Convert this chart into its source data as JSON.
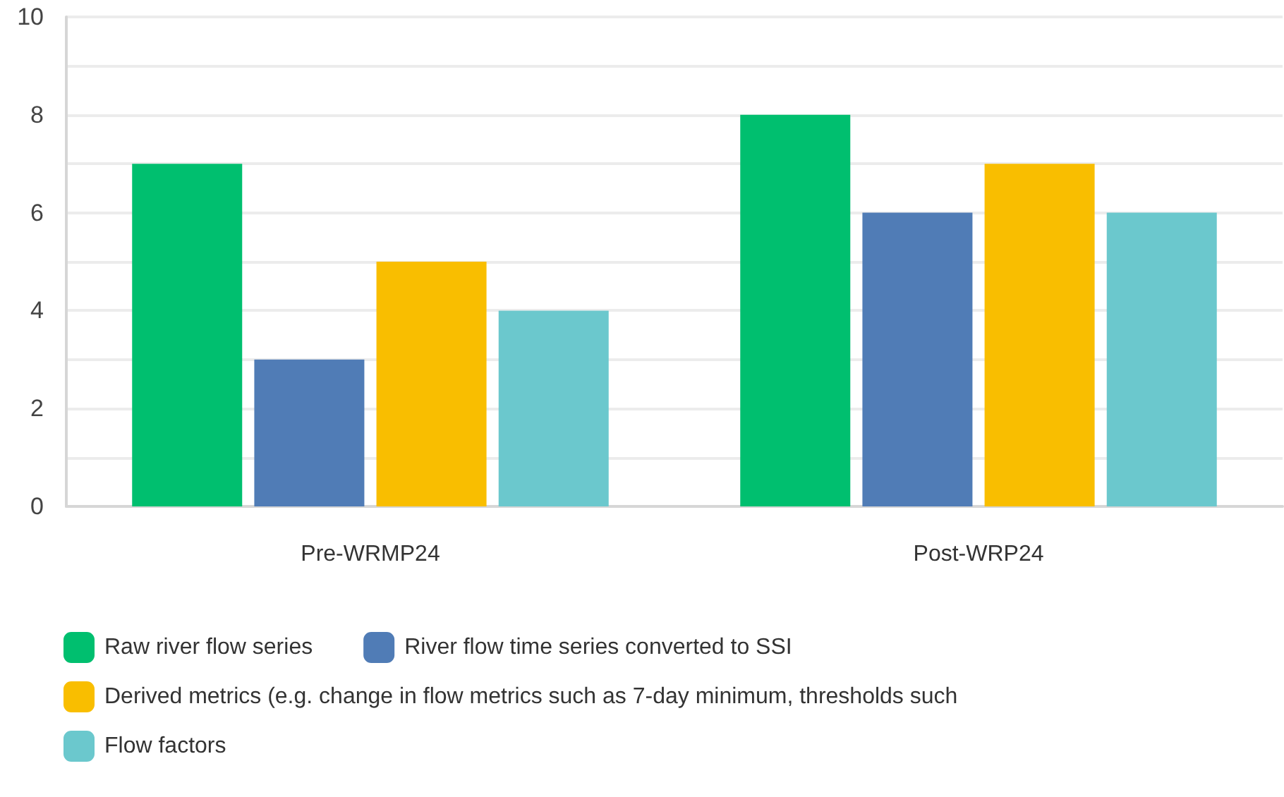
{
  "chart_data": {
    "type": "bar",
    "categories": [
      "Pre-WRMP24",
      "Post-WRP24"
    ],
    "series": [
      {
        "name": "Raw river flow series",
        "color": "#00bf6f",
        "values": [
          7,
          8
        ]
      },
      {
        "name": "River flow time series converted to SSI",
        "color": "#507cb6",
        "values": [
          3,
          6
        ]
      },
      {
        "name": "Derived metrics (e.g. change in flow metrics such as 7-day minimum, thresholds such",
        "color": "#f9be00",
        "values": [
          5,
          7
        ]
      },
      {
        "name": "Flow factors",
        "color": "#6bc8cd",
        "values": [
          4,
          6
        ]
      }
    ],
    "ylim": [
      0,
      10
    ],
    "yticks": [
      0,
      {
        "value": 1,
        "label": null
      },
      2,
      {
        "value": 3,
        "label": null
      },
      4,
      {
        "value": 5,
        "label": null
      },
      6,
      {
        "value": 7,
        "label": null
      },
      8,
      {
        "value": 9,
        "label": null
      },
      10
    ],
    "grid": "y",
    "legend": "bottom"
  }
}
